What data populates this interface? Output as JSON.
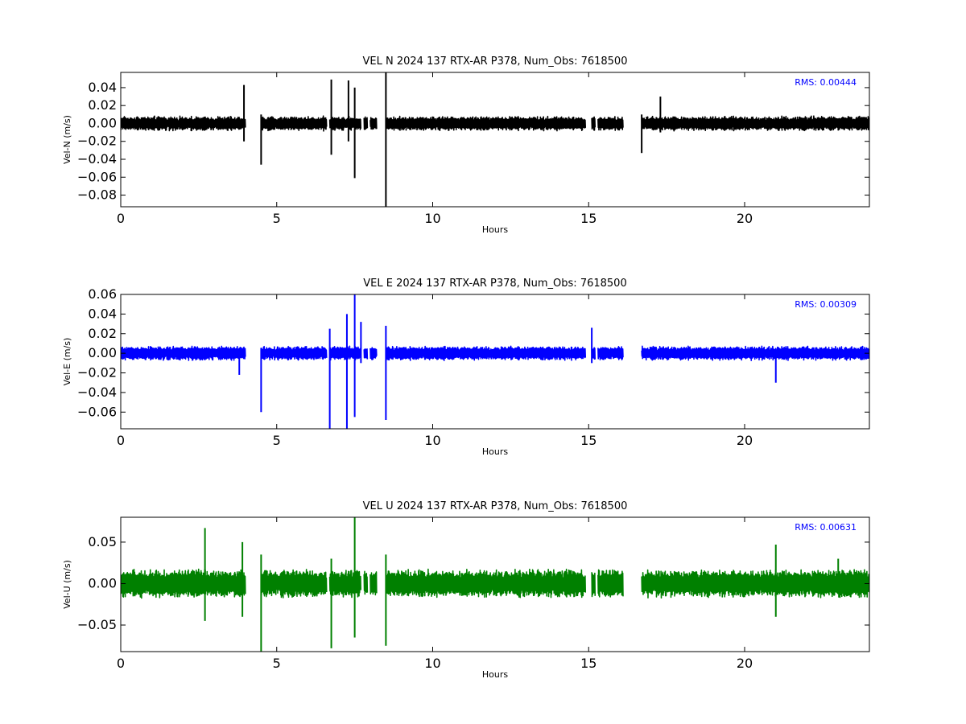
{
  "chart_data": [
    {
      "type": "line",
      "title": "VEL N 2024 137 RTX-AR  P378, Num_Obs: 7618500",
      "xlabel": "Hours",
      "ylabel": "Vel-N (m/s)",
      "xlim": [
        0,
        24
      ],
      "ylim": [
        -0.093,
        0.057
      ],
      "xticks": [
        0,
        5,
        10,
        15,
        20
      ],
      "xtick_labels": [
        "0",
        "5",
        "10",
        "15",
        "20"
      ],
      "yticks": [
        -0.08,
        -0.06,
        -0.04,
        -0.02,
        0.0,
        0.02,
        0.04
      ],
      "ytick_labels": [
        "−0.08",
        "−0.06",
        "−0.04",
        "−0.02",
        "0.00",
        "0.02",
        "0.04"
      ],
      "grid": false,
      "rms_label": "RMS:  0.00444",
      "rms_color": "#0000ff",
      "series": [
        {
          "color": "#000000",
          "noise_amplitude": 0.0085,
          "segments": [
            [
              0.0,
              4.0
            ],
            [
              4.5,
              6.6
            ],
            [
              6.7,
              7.7
            ],
            [
              7.8,
              7.9
            ],
            [
              8.0,
              8.2
            ],
            [
              8.5,
              14.9
            ],
            [
              15.1,
              15.2
            ],
            [
              15.3,
              16.1
            ],
            [
              16.7,
              24.0
            ]
          ],
          "spikes": [
            {
              "x": 3.95,
              "min": -0.02,
              "max": 0.043
            },
            {
              "x": 4.5,
              "min": -0.046,
              "max": 0.01
            },
            {
              "x": 6.75,
              "min": -0.035,
              "max": 0.049
            },
            {
              "x": 7.3,
              "min": -0.02,
              "max": 0.048
            },
            {
              "x": 7.5,
              "min": -0.061,
              "max": 0.04
            },
            {
              "x": 8.5,
              "min": -0.093,
              "max": 0.057
            },
            {
              "x": 16.7,
              "min": -0.033,
              "max": 0.01
            },
            {
              "x": 17.3,
              "min": -0.01,
              "max": 0.03
            }
          ]
        }
      ]
    },
    {
      "type": "line",
      "title": "VEL E 2024 137 RTX-AR  P378, Num_Obs: 7618500",
      "xlabel": "Hours",
      "ylabel": "Vel-E (m/s)",
      "xlim": [
        0,
        24
      ],
      "ylim": [
        -0.077,
        0.06
      ],
      "xticks": [
        0,
        5,
        10,
        15,
        20
      ],
      "xtick_labels": [
        "0",
        "5",
        "10",
        "15",
        "20"
      ],
      "yticks": [
        -0.06,
        -0.04,
        -0.02,
        0.0,
        0.02,
        0.04,
        0.06
      ],
      "ytick_labels": [
        "−0.06",
        "−0.04",
        "−0.02",
        "0.00",
        "0.02",
        "0.04",
        "0.06"
      ],
      "grid": false,
      "rms_label": "RMS:  0.00309",
      "rms_color": "#0000ff",
      "series": [
        {
          "color": "#0000ff",
          "noise_amplitude": 0.0075,
          "segments": [
            [
              0.0,
              4.0
            ],
            [
              4.5,
              6.6
            ],
            [
              6.7,
              7.7
            ],
            [
              7.8,
              7.9
            ],
            [
              8.0,
              8.2
            ],
            [
              8.5,
              14.9
            ],
            [
              15.1,
              15.2
            ],
            [
              15.3,
              16.1
            ],
            [
              16.7,
              24.0
            ]
          ],
          "spikes": [
            {
              "x": 3.8,
              "min": -0.022,
              "max": 0.005
            },
            {
              "x": 4.5,
              "min": -0.06,
              "max": 0.005
            },
            {
              "x": 6.7,
              "min": -0.077,
              "max": 0.025
            },
            {
              "x": 7.25,
              "min": -0.077,
              "max": 0.04
            },
            {
              "x": 7.5,
              "min": -0.065,
              "max": 0.06
            },
            {
              "x": 7.7,
              "min": -0.01,
              "max": 0.032
            },
            {
              "x": 8.5,
              "min": -0.068,
              "max": 0.028
            },
            {
              "x": 15.1,
              "min": -0.01,
              "max": 0.026
            },
            {
              "x": 21.0,
              "min": -0.03,
              "max": 0.005
            }
          ]
        }
      ]
    },
    {
      "type": "line",
      "title": "VEL U 2024 137 RTX-AR  P378, Num_Obs: 7618500",
      "xlabel": "Hours",
      "ylabel": "Vel-U (m/s)",
      "xlim": [
        0,
        24
      ],
      "ylim": [
        -0.082,
        0.08
      ],
      "xticks": [
        0,
        5,
        10,
        15,
        20
      ],
      "xtick_labels": [
        "0",
        "5",
        "10",
        "15",
        "20"
      ],
      "yticks": [
        -0.05,
        0.0,
        0.05
      ],
      "ytick_labels": [
        "−0.05",
        "0.00",
        "0.05"
      ],
      "grid": false,
      "rms_label": "RMS:  0.00631",
      "rms_color": "#0000ff",
      "series": [
        {
          "color": "#008000",
          "noise_amplitude": 0.018,
          "segments": [
            [
              0.0,
              4.0
            ],
            [
              4.5,
              6.6
            ],
            [
              6.7,
              7.7
            ],
            [
              7.8,
              7.9
            ],
            [
              8.0,
              8.2
            ],
            [
              8.5,
              14.9
            ],
            [
              15.1,
              15.2
            ],
            [
              15.3,
              16.1
            ],
            [
              16.7,
              24.0
            ]
          ],
          "spikes": [
            {
              "x": 2.7,
              "min": -0.045,
              "max": 0.067
            },
            {
              "x": 3.9,
              "min": -0.04,
              "max": 0.05
            },
            {
              "x": 4.5,
              "min": -0.082,
              "max": 0.035
            },
            {
              "x": 6.75,
              "min": -0.078,
              "max": 0.03
            },
            {
              "x": 7.5,
              "min": -0.065,
              "max": 0.08
            },
            {
              "x": 8.5,
              "min": -0.075,
              "max": 0.035
            },
            {
              "x": 21.0,
              "min": -0.04,
              "max": 0.047
            },
            {
              "x": 23.0,
              "min": -0.01,
              "max": 0.03
            }
          ]
        }
      ]
    }
  ]
}
